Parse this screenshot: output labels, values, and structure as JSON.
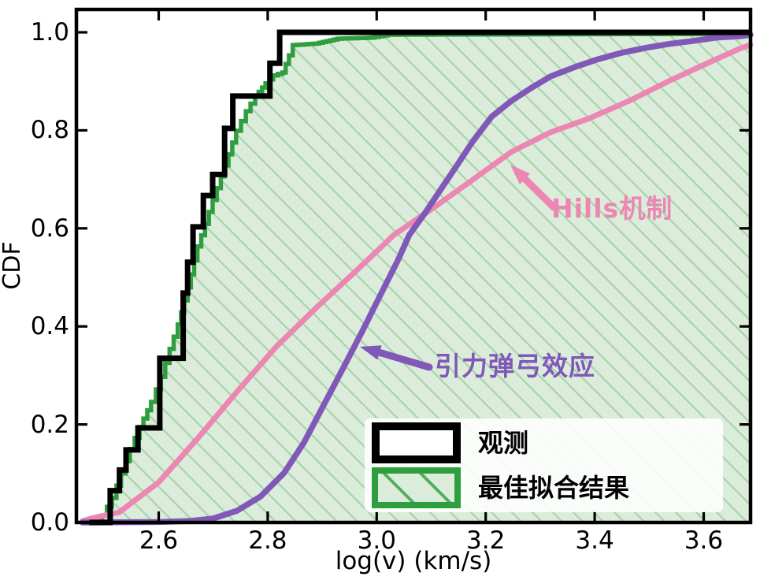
{
  "axes": {
    "xlabel": "log(v) (km/s)",
    "ylabel": "CDF"
  },
  "legend": {
    "position": "lower right",
    "items": [
      {
        "label": "观测",
        "swatch": "black-outline-rect"
      },
      {
        "label": "最佳拟合结果",
        "swatch": "green-hatched-rect"
      }
    ]
  },
  "annotations": {
    "hills": {
      "label": "Hills机制",
      "color": "#e5799f"
    },
    "slingshot": {
      "label": "引力弹弓效应",
      "color": "#7f58b8"
    }
  },
  "colors": {
    "observed": "#000000",
    "best_fit_line": "#2f9e3f",
    "best_fit_fill": "#dcecdb",
    "best_fit_hatch": "#a8d3aa",
    "hills": "#ec86b3",
    "slingshot": "#7f58b8",
    "frame": "#000000"
  },
  "chart_data": {
    "type": "line",
    "subtype": "empirical-cdf-comparison",
    "title": "",
    "xlabel": "log(v) (km/s)",
    "ylabel": "CDF",
    "xlim": [
      2.449,
      3.686
    ],
    "ylim": [
      0,
      1.047
    ],
    "grid": false,
    "legend_position": "lower right",
    "x_ticks": {
      "values": [
        2.6,
        2.8,
        3.0,
        3.2,
        3.4,
        3.6
      ],
      "labels": [
        "2.6",
        "2.8",
        "3.0",
        "3.2",
        "3.4",
        "3.6"
      ]
    },
    "y_ticks": {
      "values": [
        0.0,
        0.2,
        0.4,
        0.6,
        0.8,
        1.0
      ],
      "labels": [
        "0.0",
        "0.2",
        "0.4",
        "0.6",
        "0.8",
        "1.0"
      ]
    },
    "series": [
      {
        "name": "观测",
        "render": "step-cdf",
        "color": "#000000",
        "linewidth": 7,
        "start_x": 2.473,
        "end_x": 3.686,
        "steps": [
          [
            2.511,
            0.065
          ],
          [
            2.528,
            0.107
          ],
          [
            2.54,
            0.148
          ],
          [
            2.562,
            0.193
          ],
          [
            2.602,
            0.335
          ],
          [
            2.645,
            0.468
          ],
          [
            2.653,
            0.531
          ],
          [
            2.663,
            0.603
          ],
          [
            2.682,
            0.667
          ],
          [
            2.699,
            0.71
          ],
          [
            2.721,
            0.804
          ],
          [
            2.736,
            0.87
          ],
          [
            2.804,
            0.937
          ],
          [
            2.822,
            1.0
          ]
        ]
      },
      {
        "name": "最佳拟合结果",
        "render": "filled-fine-step-cdf",
        "color": "#2f9e3f",
        "fill": "#dcecdb",
        "hatch": "\\",
        "hatch_color": "#a8d3aa",
        "linewidth": 5.5,
        "points": [
          [
            2.482,
            0.0
          ],
          [
            2.496,
            0.014
          ],
          [
            2.514,
            0.05
          ],
          [
            2.531,
            0.1
          ],
          [
            2.547,
            0.15
          ],
          [
            2.565,
            0.195
          ],
          [
            2.586,
            0.246
          ],
          [
            2.604,
            0.297
          ],
          [
            2.62,
            0.354
          ],
          [
            2.635,
            0.404
          ],
          [
            2.647,
            0.453
          ],
          [
            2.659,
            0.506
          ],
          [
            2.671,
            0.563
          ],
          [
            2.685,
            0.609
          ],
          [
            2.699,
            0.658
          ],
          [
            2.714,
            0.706
          ],
          [
            2.728,
            0.751
          ],
          [
            2.742,
            0.799
          ],
          [
            2.76,
            0.839
          ],
          [
            2.777,
            0.87
          ],
          [
            2.796,
            0.896
          ],
          [
            2.81,
            0.912
          ],
          [
            2.827,
            0.918
          ],
          [
            2.839,
            0.953
          ],
          [
            2.846,
            0.974
          ],
          [
            2.888,
            0.977
          ],
          [
            2.928,
            0.987
          ],
          [
            2.988,
            0.989
          ],
          [
            3.02,
            0.995
          ],
          [
            3.686,
            0.997
          ]
        ]
      },
      {
        "name": "Hills机制",
        "render": "line",
        "color": "#ec86b3",
        "linewidth": 7,
        "points": [
          [
            2.46,
            0.003
          ],
          [
            2.475,
            0.008
          ],
          [
            2.528,
            0.021
          ],
          [
            2.6,
            0.082
          ],
          [
            2.672,
            0.172
          ],
          [
            2.744,
            0.267
          ],
          [
            2.816,
            0.359
          ],
          [
            2.888,
            0.437
          ],
          [
            2.96,
            0.511
          ],
          [
            3.032,
            0.587
          ],
          [
            3.104,
            0.642
          ],
          [
            3.176,
            0.699
          ],
          [
            3.247,
            0.756
          ],
          [
            3.319,
            0.796
          ],
          [
            3.391,
            0.825
          ],
          [
            3.463,
            0.86
          ],
          [
            3.535,
            0.9
          ],
          [
            3.607,
            0.937
          ],
          [
            3.665,
            0.966
          ],
          [
            3.686,
            0.975
          ]
        ]
      },
      {
        "name": "引力弹弓效应",
        "render": "line",
        "color": "#7f58b8",
        "linewidth": 7.5,
        "points": [
          [
            2.46,
            0.0
          ],
          [
            2.6,
            0.001
          ],
          [
            2.657,
            0.003
          ],
          [
            2.7,
            0.008
          ],
          [
            2.744,
            0.024
          ],
          [
            2.787,
            0.053
          ],
          [
            2.83,
            0.101
          ],
          [
            2.866,
            0.162
          ],
          [
            2.902,
            0.238
          ],
          [
            2.938,
            0.314
          ],
          [
            2.974,
            0.391
          ],
          [
            3.01,
            0.471
          ],
          [
            3.039,
            0.535
          ],
          [
            3.06,
            0.587
          ],
          [
            3.089,
            0.632
          ],
          [
            3.118,
            0.68
          ],
          [
            3.147,
            0.728
          ],
          [
            3.176,
            0.777
          ],
          [
            3.211,
            0.828
          ],
          [
            3.247,
            0.86
          ],
          [
            3.283,
            0.886
          ],
          [
            3.319,
            0.91
          ],
          [
            3.363,
            0.929
          ],
          [
            3.406,
            0.945
          ],
          [
            3.449,
            0.958
          ],
          [
            3.492,
            0.968
          ],
          [
            3.535,
            0.976
          ],
          [
            3.578,
            0.982
          ],
          [
            3.622,
            0.989
          ],
          [
            3.665,
            0.992
          ],
          [
            3.686,
            0.995
          ]
        ]
      }
    ],
    "annotations": [
      {
        "text": "Hills机制",
        "points_to_series": "Hills机制"
      },
      {
        "text": "引力弹弓效应",
        "points_to_series": "引力弹弓效应"
      }
    ]
  }
}
